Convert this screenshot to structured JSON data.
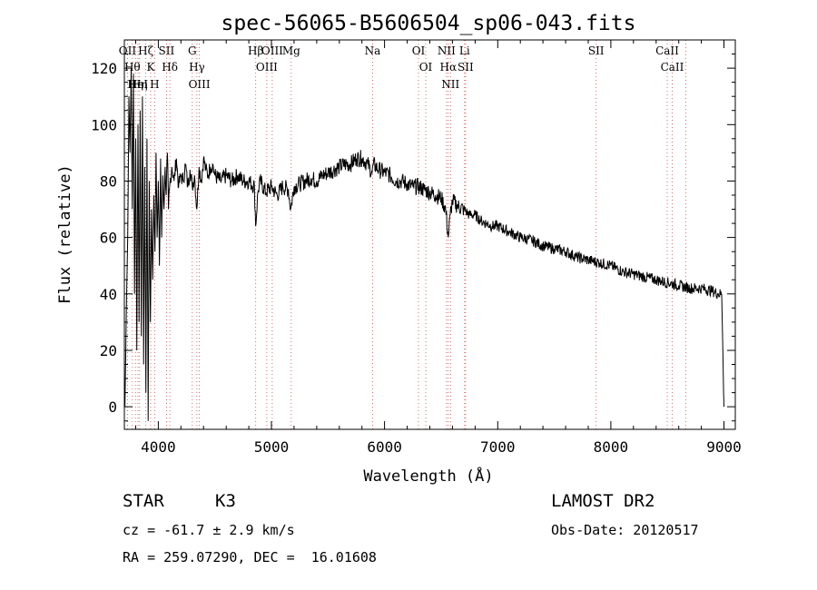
{
  "chart_data": {
    "type": "line",
    "title": "spec-56065-B5606504_sp06-043.fits",
    "xlabel": "Wavelength (Å)",
    "ylabel": "Flux (relative)",
    "xlim": [
      3700,
      9100
    ],
    "ylim": [
      -8,
      130
    ],
    "x_ticks": [
      4000,
      5000,
      6000,
      7000,
      8000,
      9000
    ],
    "y_ticks": [
      0,
      20,
      40,
      60,
      80,
      100,
      120
    ],
    "grid": false,
    "series": [
      {
        "x": [
          3705,
          3720,
          3730,
          3740,
          3750,
          3760,
          3770,
          3780,
          3790,
          3800,
          3810,
          3820,
          3830,
          3840,
          3850,
          3860,
          3870,
          3880,
          3890,
          3900,
          3910,
          3920,
          3930,
          3940,
          3950,
          3960,
          3970,
          3980,
          3990,
          4000,
          4010,
          4020,
          4030,
          4040,
          4050,
          4060,
          4070,
          4080,
          4090,
          4100,
          4120,
          4140,
          4160,
          4180,
          4200,
          4220,
          4240,
          4260,
          4280,
          4300,
          4320,
          4340,
          4360,
          4380,
          4400,
          4420,
          4440,
          4460,
          4480,
          4500,
          4550,
          4600,
          4650,
          4700,
          4750,
          4800,
          4850,
          4860,
          4880,
          4900,
          4950,
          5000,
          5050,
          5100,
          5150,
          5170,
          5200,
          5250,
          5300,
          5350,
          5400,
          5450,
          5500,
          5550,
          5600,
          5650,
          5700,
          5750,
          5800,
          5850,
          5890,
          5900,
          5950,
          6000,
          6050,
          6100,
          6150,
          6200,
          6250,
          6300,
          6350,
          6400,
          6450,
          6500,
          6540,
          6563,
          6580,
          6600,
          6650,
          6700,
          6750,
          6800,
          6850,
          6900,
          6950,
          7000,
          7100,
          7200,
          7300,
          7400,
          7500,
          7600,
          7700,
          7800,
          7900,
          8000,
          8100,
          8200,
          8300,
          8400,
          8500,
          8600,
          8700,
          8800,
          8900,
          8950,
          8980,
          8990,
          9000
        ],
        "y": [
          0,
          40,
          60,
          110,
          90,
          120,
          70,
          118,
          40,
          95,
          20,
          100,
          30,
          105,
          25,
          110,
          15,
          85,
          5,
          95,
          -5,
          80,
          30,
          70,
          45,
          75,
          55,
          90,
          60,
          80,
          50,
          88,
          60,
          82,
          70,
          85,
          75,
          90,
          70,
          78,
          85,
          80,
          88,
          78,
          82,
          80,
          86,
          78,
          84,
          78,
          82,
          70,
          85,
          80,
          88,
          84,
          82,
          85,
          86,
          82,
          80,
          82,
          80,
          82,
          80,
          80,
          78,
          64,
          76,
          80,
          76,
          78,
          75,
          78,
          77,
          70,
          78,
          79,
          80,
          81,
          80,
          82,
          83,
          84,
          85,
          86,
          86,
          88,
          88,
          86,
          83,
          86,
          84,
          83,
          82,
          80,
          80,
          79,
          78,
          78,
          77,
          76,
          75,
          74,
          70,
          60,
          68,
          73,
          71,
          70,
          68,
          68,
          66,
          65,
          64,
          64,
          62,
          60,
          59,
          57,
          56,
          55,
          53,
          52,
          51,
          50,
          48,
          47,
          46,
          45,
          44,
          43,
          42,
          42,
          41,
          40,
          40,
          20,
          0
        ]
      }
    ],
    "line_markers": [
      {
        "wl": 3727,
        "label": "OII"
      },
      {
        "wl": 3771,
        "label": "Hθ"
      },
      {
        "wl": 3798,
        "label": "Hη"
      },
      {
        "wl": 3820,
        "label": "HeI"
      },
      {
        "wl": 3835,
        "label": "Hη"
      },
      {
        "wl": 3889,
        "label": "Hζ"
      },
      {
        "wl": 3933,
        "label": "K"
      },
      {
        "wl": 3968,
        "label": "H"
      },
      {
        "wl": 4072,
        "label": "SII"
      },
      {
        "wl": 4102,
        "label": "Hδ"
      },
      {
        "wl": 4300,
        "label": "G"
      },
      {
        "wl": 4341,
        "label": "Hγ"
      },
      {
        "wl": 4363,
        "label": "OIII"
      },
      {
        "wl": 4861,
        "label": "Hβ"
      },
      {
        "wl": 4959,
        "label": "OIII"
      },
      {
        "wl": 5007,
        "label": "OIII"
      },
      {
        "wl": 5175,
        "label": "Mg"
      },
      {
        "wl": 5894,
        "label": "Na"
      },
      {
        "wl": 6300,
        "label": "OI"
      },
      {
        "wl": 6364,
        "label": "OI"
      },
      {
        "wl": 6548,
        "label": "NII"
      },
      {
        "wl": 6563,
        "label": "Hα"
      },
      {
        "wl": 6583,
        "label": "NII"
      },
      {
        "wl": 6707,
        "label": "Li"
      },
      {
        "wl": 6716,
        "label": "SII"
      },
      {
        "wl": 7870,
        "label": "SII"
      },
      {
        "wl": 8498,
        "label": "CaII"
      },
      {
        "wl": 8542,
        "label": "CaII"
      },
      {
        "wl": 8662,
        "label": ""
      }
    ]
  },
  "info": {
    "object_class": "STAR",
    "subclass": "K3",
    "survey": "LAMOST DR2",
    "cz": "cz = -61.7 ± 2.9 km/s",
    "obs_date": "Obs-Date: 20120517",
    "coords": "RA = 259.07290, DEC =  16.01608"
  }
}
